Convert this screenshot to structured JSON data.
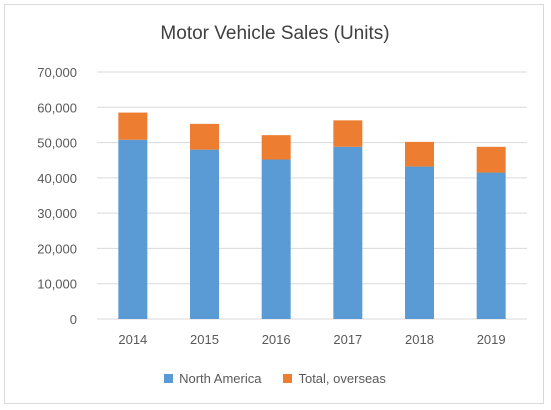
{
  "chart_data": {
    "type": "bar",
    "stacked": true,
    "title": "Motor Vehicle Sales (Units)",
    "xlabel": "",
    "ylabel": "",
    "categories": [
      "2014",
      "2015",
      "2016",
      "2017",
      "2018",
      "2019"
    ],
    "series": [
      {
        "name": "North America",
        "color": "#5b9bd5",
        "values": [
          50800,
          48000,
          45200,
          48800,
          43200,
          41500
        ]
      },
      {
        "name": "Total, overseas",
        "color": "#ed7d31",
        "values": [
          7700,
          7300,
          6900,
          7500,
          7000,
          7300
        ]
      }
    ],
    "ylim": [
      0,
      70000
    ],
    "yticks": [
      "0",
      "10,000",
      "20,000",
      "30,000",
      "40,000",
      "50,000",
      "60,000",
      "70,000"
    ],
    "grid": true,
    "legend_position": "bottom"
  }
}
